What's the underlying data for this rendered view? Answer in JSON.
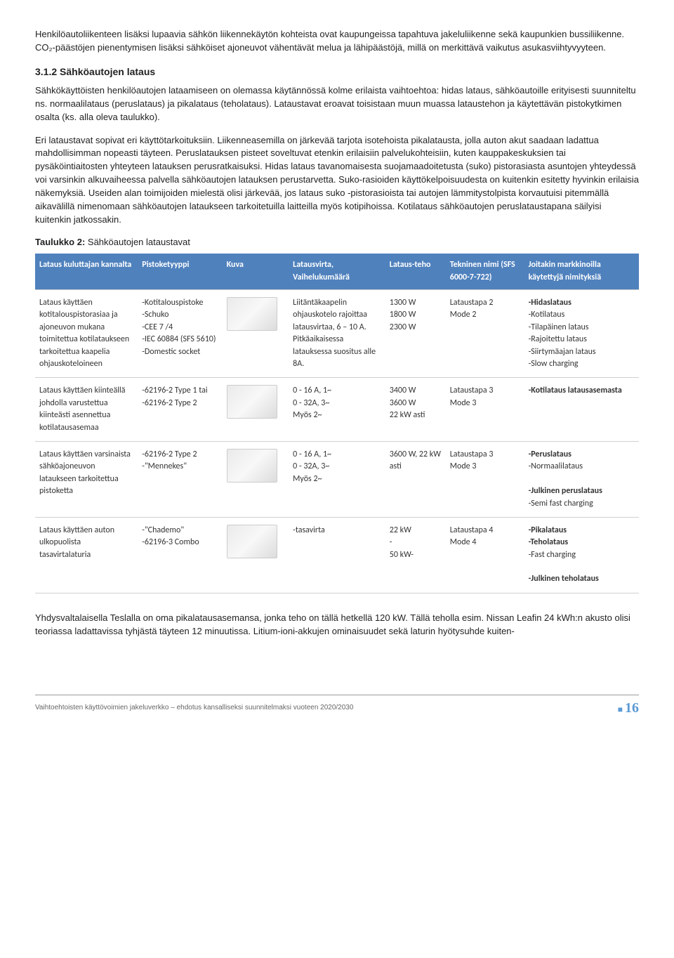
{
  "paragraphs": {
    "p1": "Henkilöautoliikenteen lisäksi lupaavia sähkön liikennekäytön kohteista ovat kaupungeissa tapahtuva jakeluliikenne sekä kaupunkien bussiliikenne. CO₂-päästöjen pienentymisen lisäksi sähköiset ajoneuvot vähentävät melua ja lähipäästöjä, millä on merkittävä vaikutus asukasviihtyvyyteen.",
    "h312": "3.1.2 Sähköautojen lataus",
    "p2": "Sähkökäyttöisten henkilöautojen lataamiseen on olemassa käytännössä kolme erilaista vaihtoehtoa: hidas lataus, sähköautoille erityisesti suunniteltu ns. normaalilataus (peruslataus) ja pikalataus (teholataus). Lataustavat eroavat toisistaan muun muassa lataustehon ja käytettävän pistokytkimen osalta (ks. alla oleva taulukko).",
    "p3": "Eri lataustavat sopivat eri käyttötarkoituksiin. Liikenneasemilla on järkevää tarjota isotehoista pikalatausta, jolla auton akut saadaan ladattua mahdollisimman nopeasti täyteen. Peruslatauksen pisteet soveltuvat etenkin erilaisiin palvelukohteisiin, kuten kauppakeskuksien tai pysäköintiaitosten yhteyteen latauksen perusratkaisuksi. Hidas lataus tavanomaisesta suojamaadoitetusta (suko) pistorasiasta asuntojen yhteydessä voi varsinkin alkuvaiheessa palvella sähköautojen latauksen perustarvetta. Suko-rasioiden käyttökelpoisuudesta on kuitenkin esitetty hyvinkin erilaisia näkemyksiä. Useiden alan toimijoiden mielestä olisi järkevää, jos lataus suko -pistorasioista tai autojen lämmitystolpista korvautuisi pitemmällä aikavälillä nimenomaan sähköautojen lataukseen tarkoitetuilla laitteilla myös kotipihoissa. Kotilataus sähköautojen peruslataustapana säilyisi kuitenkin jatkossakin.",
    "tcaption_b": "Taulukko 2:",
    "tcaption_rest": " Sähköautojen lataustavat",
    "p4": "Yhdysvaltalaisella Teslalla on oma pikalatausasemansa, jonka teho on tällä hetkellä 120 kW. Tällä teholla esim. Nissan Leafin 24 kWh:n akusto olisi teoriassa ladattavissa tyhjästä täyteen 12 minuutissa. Litium-ioni-akkujen ominaisuudet sekä laturin hyötysuhde kuiten-"
  },
  "table": {
    "headers": [
      "Lataus kuluttajan kannalta",
      "Pistoketyyppi",
      "Kuva",
      "Latausvirta, Vaihelukumäärä",
      "Lataus-teho",
      "Tekninen nimi (SFS 6000-7-722)",
      "Joitakin markkinoilla käytettyjä nimityksiä"
    ],
    "rows": [
      {
        "c0": "Lataus käyttäen kotitalouspistorasiaa ja ajoneuvon mukana toimitettua kotilataukseen tarkoitettua kaapelia ohjauskoteloineen",
        "c1": "-Kotitalouspistoke\n-Schuko\n-CEE 7 /4\n-IEC 60884 (SFS 5610)\n-Domestic socket",
        "c3": "Liitäntäkaapelin ohjauskotelo rajoittaa latausvirtaa, 6 – 10 A. Pitkäaikaisessa latauksessa suositus alle 8A.",
        "c4": "1300 W\n1800 W\n2300 W",
        "c5": "Lataustapa 2\nMode 2",
        "c6": "-Hidaslataus\n-Kotilataus\n-Tilapäinen lataus\n-Rajoitettu lataus\n-Siirtymäajan lataus\n-Slow charging"
      },
      {
        "c0": "Lataus käyttäen kiinteällä johdolla varustettua kiinteästi asennettua kotilatausasemaa",
        "c1": "-62196-2 Type 1 tai\n-62196-2 Type 2",
        "c3": "0 - 16 A, 1~\n0 - 32A, 3~\nMyös 2~",
        "c4": "3400 W\n3600 W\n22 kW asti",
        "c5": "Lataustapa 3\nMode 3",
        "c6": "-Kotilataus latausasemasta"
      },
      {
        "c0": "Lataus käyttäen varsinaista sähköajoneuvon lataukseen tarkoitettua pistoketta",
        "c1": "-62196-2 Type 2\n-\"Mennekes\"",
        "c3": "0 - 16 A, 1~\n0 - 32A, 3~\nMyös 2~",
        "c4": "3600 W, 22 kW asti",
        "c5": "Lataustapa 3\nMode 3",
        "c6": "-Peruslataus\n-Normaalilataus\n\n-Julkinen peruslataus\n-Semi fast charging"
      },
      {
        "c0": "Lataus käyttäen auton ulkopuolista tasavirtalaturia",
        "c1": "-\"Chademo\"\n-62196-3 Combo",
        "c3": "-tasavirta",
        "c4": "22 kW\n-\n50 kW-",
        "c5": "Lataustapa 4\nMode 4",
        "c6": "-Pikalataus\n-Teholataus\n-Fast charging\n\n-Julkinen teholataus"
      }
    ]
  },
  "footer": {
    "left": "Vaihtoehtoisten käyttövoimien jakeluverkko – ehdotus kansalliseksi suunnitelmaksi vuoteen 2020/2030",
    "page": "16"
  }
}
